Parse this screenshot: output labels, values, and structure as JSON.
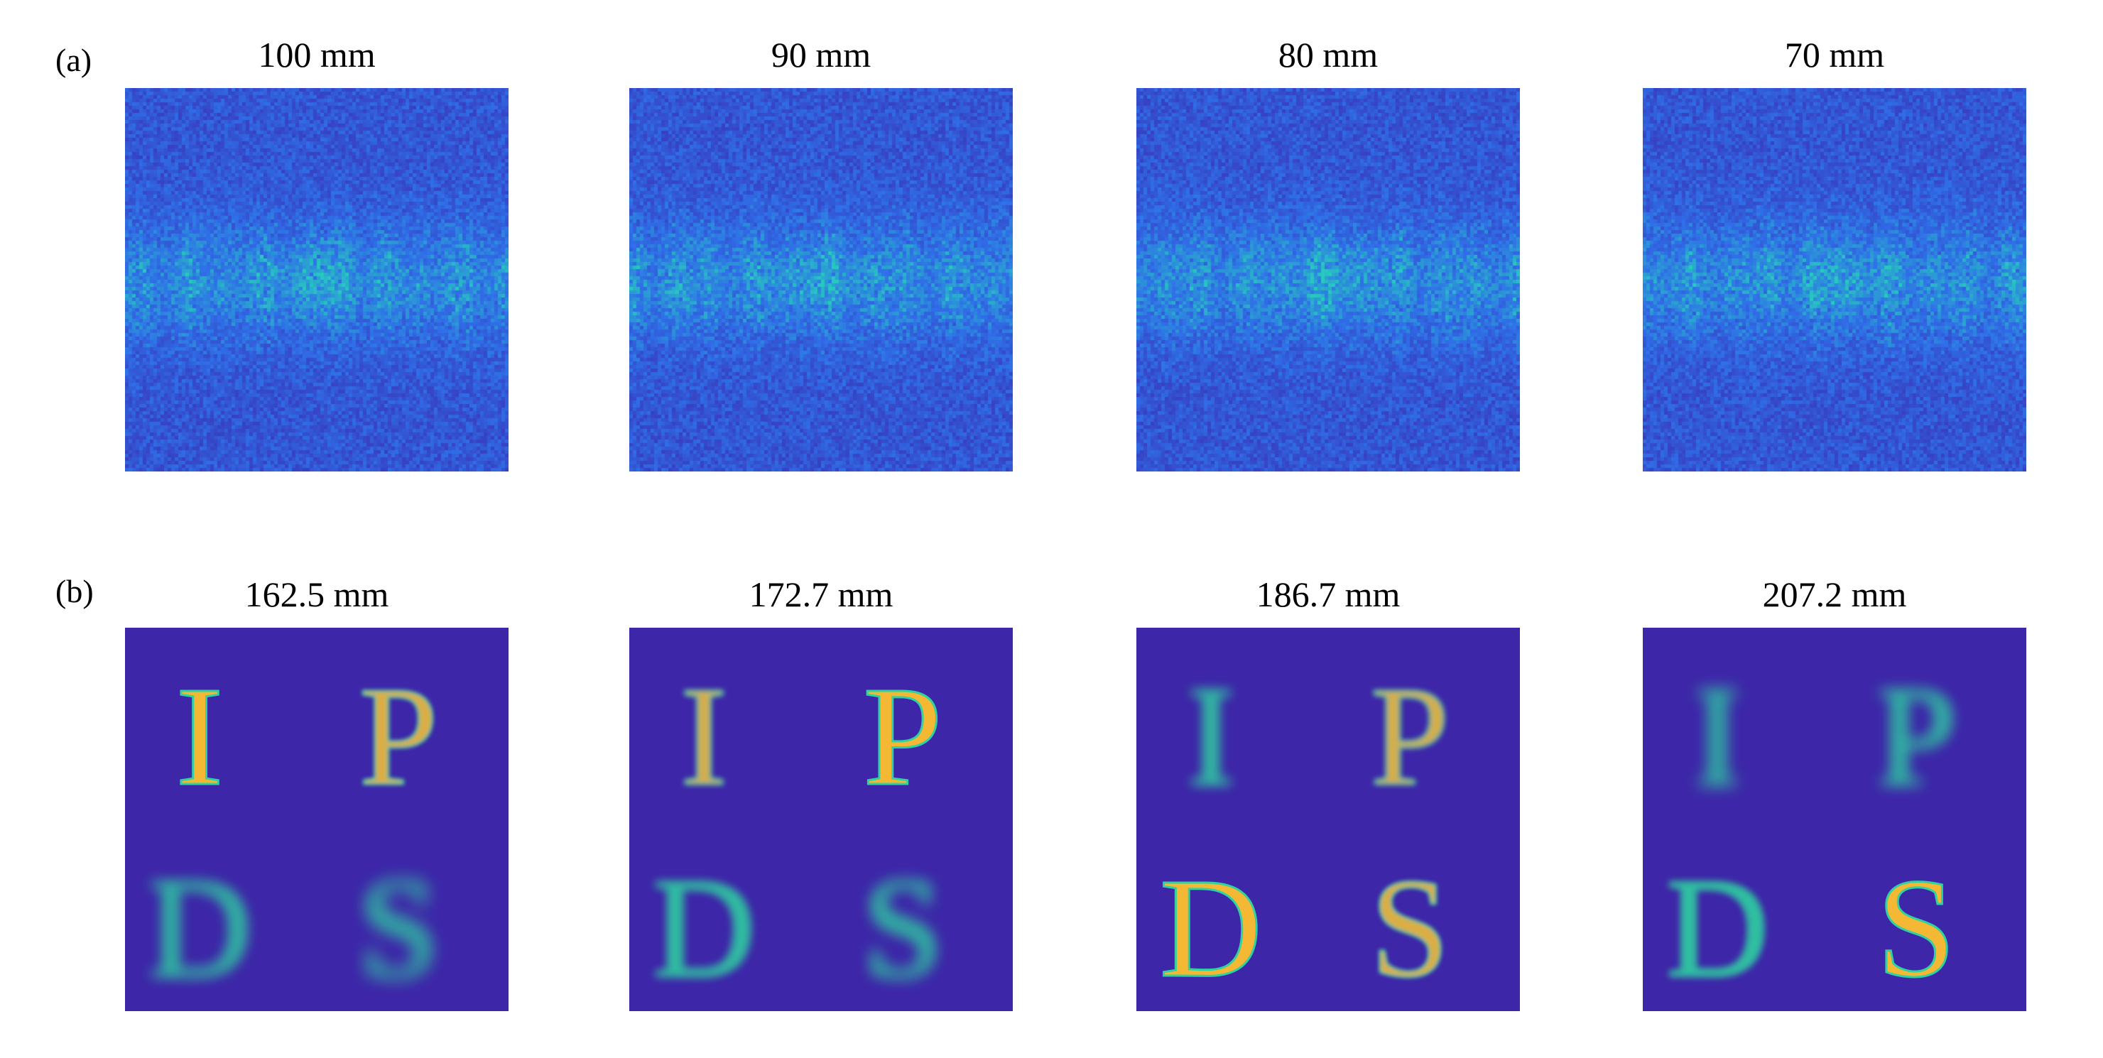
{
  "figure": {
    "rows": [
      {
        "id": "a",
        "label": "(a)",
        "type": "speckle",
        "panels": [
          {
            "title": "100 mm"
          },
          {
            "title": "90 mm"
          },
          {
            "title": "80 mm"
          },
          {
            "title": "70 mm"
          }
        ]
      },
      {
        "id": "b",
        "label": "(b)",
        "type": "reconstruction",
        "panels": [
          {
            "title": "162.5 mm",
            "letters": [
              {
                "char": "I",
                "focus": 1.0
              },
              {
                "char": "P",
                "focus": 0.75
              },
              {
                "char": "D",
                "focus": 0.25
              },
              {
                "char": "S",
                "focus": 0.0
              }
            ]
          },
          {
            "title": "172.7 mm",
            "letters": [
              {
                "char": "I",
                "focus": 0.7
              },
              {
                "char": "P",
                "focus": 1.0
              },
              {
                "char": "D",
                "focus": 0.5
              },
              {
                "char": "S",
                "focus": 0.15
              }
            ]
          },
          {
            "title": "186.7 mm",
            "letters": [
              {
                "char": "I",
                "focus": 0.35
              },
              {
                "char": "P",
                "focus": 0.7
              },
              {
                "char": "D",
                "focus": 1.0
              },
              {
                "char": "S",
                "focus": 0.75
              }
            ]
          },
          {
            "title": "207.2 mm",
            "letters": [
              {
                "char": "I",
                "focus": 0.1
              },
              {
                "char": "P",
                "focus": 0.2
              },
              {
                "char": "D",
                "focus": 0.6
              },
              {
                "char": "S",
                "focus": 1.0
              }
            ]
          }
        ]
      }
    ],
    "colors": {
      "background": "#3e26a8",
      "speckle_low": "#3a2ab0",
      "speckle_mid": "#2f6fe8",
      "speckle_high": "#27c8c0",
      "letter_focus": "#f4b834",
      "letter_edge": "#2fd2a0"
    }
  }
}
